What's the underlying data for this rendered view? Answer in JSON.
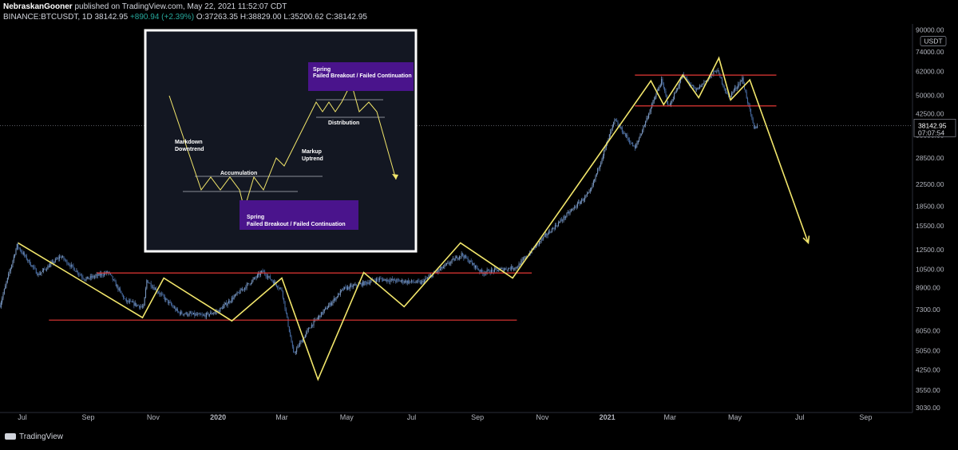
{
  "header": {
    "author": "NebraskanGooner",
    "published_text": "published on TradingView.com, May 22, 2021 11:52:07 CDT",
    "symbol_text": "BINANCE:BTCUSDT, 1D",
    "last_price": "38142.95",
    "change_text": "+890.94 (+2.39%)",
    "ohlc_text": "O:37263.35 H:38829.00 L:35200.62 C:38142.95"
  },
  "price_axis": {
    "currency": "USDT",
    "price_label": "38142.95",
    "countdown": "07:07:54"
  },
  "branding": {
    "logo_text": "TradingView"
  },
  "colors": {
    "background": "#000000",
    "candle_up": "#7f9ec9",
    "candle_down": "#4a6fa8",
    "zigzag": "#f2e66b",
    "level_line": "#e53935",
    "inset_bg": "#131722",
    "inset_border": "#ffffff",
    "label_box": "#4a148c"
  },
  "chart_data": {
    "type": "candlestick",
    "title": "",
    "xlabel": "",
    "ylabel": "",
    "y_scale": "log",
    "ylim": [
      2900,
      95000
    ],
    "xlim": [
      "2019-06-10",
      "2021-10-15"
    ],
    "x_ticks": [
      {
        "date": "2019-07-01",
        "label": "Jul"
      },
      {
        "date": "2019-09-01",
        "label": "Sep"
      },
      {
        "date": "2019-11-01",
        "label": "Nov"
      },
      {
        "date": "2020-01-01",
        "label": "2020"
      },
      {
        "date": "2020-03-01",
        "label": "Mar"
      },
      {
        "date": "2020-05-01",
        "label": "May"
      },
      {
        "date": "2020-07-01",
        "label": "Jul"
      },
      {
        "date": "2020-09-01",
        "label": "Sep"
      },
      {
        "date": "2020-11-01",
        "label": "Nov"
      },
      {
        "date": "2021-01-01",
        "label": "2021"
      },
      {
        "date": "2021-03-01",
        "label": "Mar"
      },
      {
        "date": "2021-05-01",
        "label": "May"
      },
      {
        "date": "2021-07-01",
        "label": "Jul"
      },
      {
        "date": "2021-09-01",
        "label": "Sep"
      }
    ],
    "y_ticks": [
      {
        "value": 90000,
        "label": "90000.00"
      },
      {
        "value": 74000,
        "label": "74000.00"
      },
      {
        "value": 62000,
        "label": "62000.00"
      },
      {
        "value": 50000,
        "label": "50000.00"
      },
      {
        "value": 42500,
        "label": "42500.00"
      },
      {
        "value": 35000,
        "label": "35000.00"
      },
      {
        "value": 28500,
        "label": "28500.00"
      },
      {
        "value": 22500,
        "label": "22500.00"
      },
      {
        "value": 18500,
        "label": "18500.00"
      },
      {
        "value": 15500,
        "label": "15500.00"
      },
      {
        "value": 12500,
        "label": "12500.00"
      },
      {
        "value": 10500,
        "label": "10500.00"
      },
      {
        "value": 8900,
        "label": "8900.00"
      },
      {
        "value": 7300,
        "label": "7300.00"
      },
      {
        "value": 6050,
        "label": "6050.00"
      },
      {
        "value": 5050,
        "label": "5050.00"
      },
      {
        "value": 4250,
        "label": "4250.00"
      },
      {
        "value": 3550,
        "label": "3550.00"
      },
      {
        "value": 3030,
        "label": "3030.00"
      }
    ],
    "last_price": 38142.95,
    "price_anchors": [
      {
        "date": "2019-06-10",
        "price": 7600
      },
      {
        "date": "2019-06-26",
        "price": 13000
      },
      {
        "date": "2019-07-16",
        "price": 10000
      },
      {
        "date": "2019-08-06",
        "price": 11800
      },
      {
        "date": "2019-08-29",
        "price": 9600
      },
      {
        "date": "2019-09-20",
        "price": 10200
      },
      {
        "date": "2019-10-06",
        "price": 7900
      },
      {
        "date": "2019-10-23",
        "price": 7450
      },
      {
        "date": "2019-10-26",
        "price": 9500
      },
      {
        "date": "2019-11-25",
        "price": 7100
      },
      {
        "date": "2019-12-18",
        "price": 6900
      },
      {
        "date": "2020-01-01",
        "price": 7200
      },
      {
        "date": "2020-02-12",
        "price": 10300
      },
      {
        "date": "2020-03-01",
        "price": 8700
      },
      {
        "date": "2020-03-12",
        "price": 4900
      },
      {
        "date": "2020-03-28",
        "price": 6300
      },
      {
        "date": "2020-04-28",
        "price": 8800
      },
      {
        "date": "2020-05-31",
        "price": 9600
      },
      {
        "date": "2020-07-10",
        "price": 9300
      },
      {
        "date": "2020-08-17",
        "price": 12000
      },
      {
        "date": "2020-09-05",
        "price": 10200
      },
      {
        "date": "2020-10-08",
        "price": 10700
      },
      {
        "date": "2020-11-01",
        "price": 13800
      },
      {
        "date": "2020-12-16",
        "price": 21000
      },
      {
        "date": "2021-01-08",
        "price": 40000
      },
      {
        "date": "2021-01-27",
        "price": 31000
      },
      {
        "date": "2021-02-21",
        "price": 57000
      },
      {
        "date": "2021-02-28",
        "price": 45000
      },
      {
        "date": "2021-03-13",
        "price": 60000
      },
      {
        "date": "2021-03-25",
        "price": 52000
      },
      {
        "date": "2021-04-14",
        "price": 63000
      },
      {
        "date": "2021-04-25",
        "price": 49000
      },
      {
        "date": "2021-05-08",
        "price": 58000
      },
      {
        "date": "2021-05-19",
        "price": 37000
      },
      {
        "date": "2021-05-22",
        "price": 38142.95
      }
    ],
    "horizontal_levels": [
      {
        "price": 60000,
        "start": "2021-01-27",
        "end": "2021-06-09"
      },
      {
        "price": 45500,
        "start": "2021-01-27",
        "end": "2021-06-09"
      },
      {
        "price": 10150,
        "start": "2019-09-09",
        "end": "2020-10-22"
      },
      {
        "price": 6650,
        "start": "2019-07-26",
        "end": "2020-10-08"
      }
    ],
    "zigzag": [
      {
        "date": "2019-06-27",
        "price": 13300
      },
      {
        "date": "2019-10-22",
        "price": 6800
      },
      {
        "date": "2019-11-11",
        "price": 9700
      },
      {
        "date": "2020-01-14",
        "price": 6600
      },
      {
        "date": "2020-03-01",
        "price": 9700
      },
      {
        "date": "2020-04-04",
        "price": 3900
      },
      {
        "date": "2020-05-17",
        "price": 10200
      },
      {
        "date": "2020-06-24",
        "price": 7500
      },
      {
        "date": "2020-08-16",
        "price": 13300
      },
      {
        "date": "2020-10-04",
        "price": 9700
      },
      {
        "date": "2021-02-11",
        "price": 57000
      },
      {
        "date": "2021-02-23",
        "price": 46000
      },
      {
        "date": "2021-03-13",
        "price": 60000
      },
      {
        "date": "2021-03-28",
        "price": 49000
      },
      {
        "date": "2021-04-16",
        "price": 70000
      },
      {
        "date": "2021-04-27",
        "price": 48000
      },
      {
        "date": "2021-05-15",
        "price": 57500
      },
      {
        "date": "2021-07-09",
        "price": 13300
      }
    ]
  },
  "inset": {
    "labels": {
      "markdown": "Markdown",
      "downtrend": "Downtrend",
      "accumulation": "Accumulation",
      "markup": "Markup",
      "uptrend": "Uptrend",
      "distribution": "Distribution",
      "spring_top": "Spring",
      "spring_top_sub": "Failed Breakout / Failed Continuation",
      "spring_bottom": "Spring",
      "spring_bottom_sub": "Failed Breakout / Failed Continuation"
    }
  }
}
